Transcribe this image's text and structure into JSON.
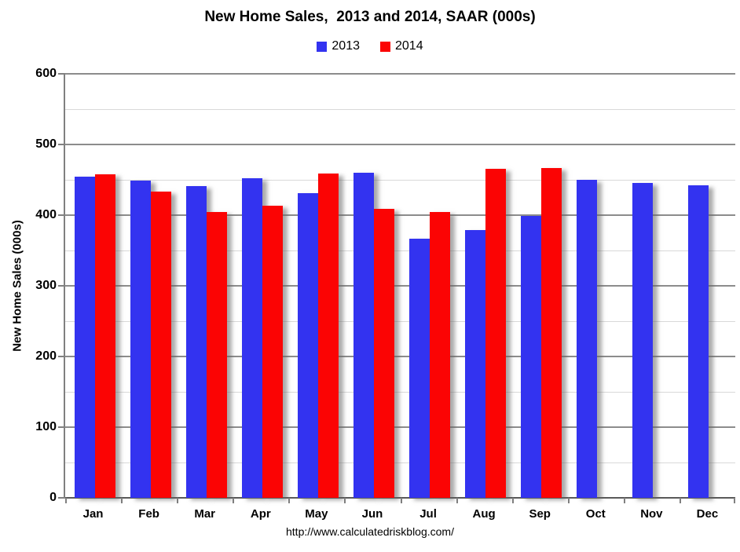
{
  "footer": "http://www.calculatedriskblog.com/",
  "chart_data": {
    "type": "bar",
    "title": "New Home Sales,  2013 and 2014, SAAR (000s)",
    "ylabel": "New Home Sales (000s)",
    "xlabel": "",
    "categories": [
      "Jan",
      "Feb",
      "Mar",
      "Apr",
      "May",
      "Jun",
      "Jul",
      "Aug",
      "Sep",
      "Oct",
      "Nov",
      "Dec"
    ],
    "series": [
      {
        "name": "2013",
        "color": "#3333F0",
        "values": [
          455,
          449,
          441,
          452,
          431,
          460,
          367,
          379,
          399,
          450,
          446,
          442
        ]
      },
      {
        "name": "2014",
        "color": "#FB0404",
        "values": [
          458,
          433,
          404,
          413,
          459,
          409,
          405,
          466,
          467,
          null,
          null,
          null
        ]
      }
    ],
    "ylim": [
      0,
      600
    ],
    "y_major_step": 100,
    "y_minor_step": 50,
    "grid": true,
    "legend_position": "top",
    "axis_color": "#808080",
    "major_grid_color": "#8C8C8C",
    "minor_grid_color": "#D9D9D9"
  }
}
